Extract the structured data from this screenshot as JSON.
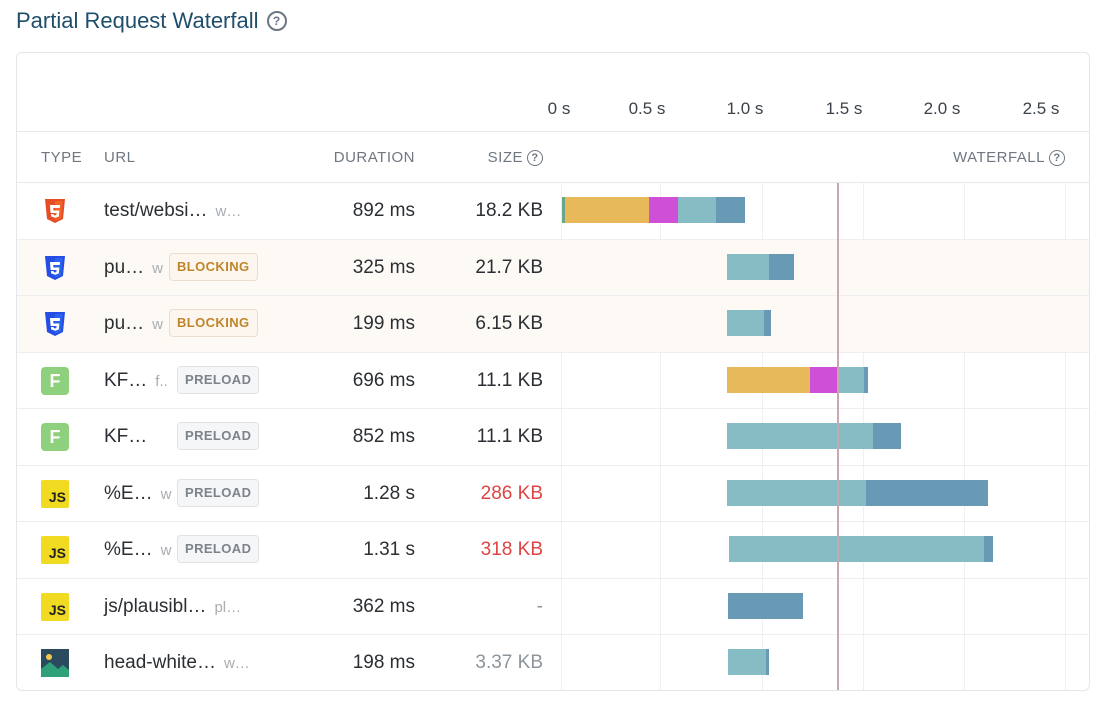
{
  "title": "Partial Request Waterfall",
  "ticks": [
    "0 s",
    "0.5 s",
    "1.0 s",
    "1.5 s",
    "2.0 s",
    "2.5 s"
  ],
  "headers": {
    "type": "TYPE",
    "url": "URL",
    "duration": "DURATION",
    "size": "SIZE",
    "waterfall": "WATERFALL"
  },
  "colors": {
    "wait": "#e8b95a",
    "ssl": "#cf4fd6",
    "download": "#86bcc4",
    "body": "#6899b5",
    "marker": "#c9a9ad",
    "red": "#e04343"
  },
  "rows": [
    {
      "type": "html",
      "icon": "html5-icon",
      "url": "test/websi…",
      "domain": "w…",
      "badge": "",
      "duration": "892 ms",
      "size": "18.2 KB",
      "size_style": "normal"
    },
    {
      "type": "css",
      "icon": "css3-icon",
      "url": "pu…",
      "domain": "w",
      "badge": "BLOCKING",
      "duration": "325 ms",
      "size": "21.7 KB",
      "size_style": "normal"
    },
    {
      "type": "css",
      "icon": "css3-icon",
      "url": "pu…",
      "domain": "w",
      "badge": "BLOCKING",
      "duration": "199 ms",
      "size": "6.15 KB",
      "size_style": "normal"
    },
    {
      "type": "font",
      "icon": "font-icon",
      "url": "KF…",
      "domain": "f..",
      "badge": "PRELOAD",
      "duration": "696 ms",
      "size": "11.1 KB",
      "size_style": "normal"
    },
    {
      "type": "font",
      "icon": "font-icon",
      "url": "KF…",
      "domain": "",
      "badge": "PRELOAD",
      "duration": "852 ms",
      "size": "11.1 KB",
      "size_style": "normal"
    },
    {
      "type": "js",
      "icon": "js-icon",
      "url": "%E…",
      "domain": "w",
      "badge": "PRELOAD",
      "duration": "1.28 s",
      "size": "286 KB",
      "size_style": "red"
    },
    {
      "type": "js",
      "icon": "js-icon",
      "url": "%E…",
      "domain": "w",
      "badge": "PRELOAD",
      "duration": "1.31 s",
      "size": "318 KB",
      "size_style": "red"
    },
    {
      "type": "js",
      "icon": "js-icon",
      "url": "js/plausibl…",
      "domain": "pl…",
      "badge": "",
      "duration": "362 ms",
      "size": "-",
      "size_style": "muted"
    },
    {
      "type": "image",
      "icon": "image-icon",
      "url": "head-white…",
      "domain": "w…",
      "badge": "",
      "duration": "198 ms",
      "size": "3.37 KB",
      "size_style": "muted"
    }
  ]
}
